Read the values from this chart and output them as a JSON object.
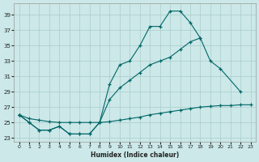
{
  "background_color": "#cce8e8",
  "grid_color": "#aacccc",
  "line_color": "#006666",
  "xlabel": "Humidex (Indice chaleur)",
  "xlim": [
    -0.5,
    23.5
  ],
  "ylim": [
    22.5,
    40.5
  ],
  "yticks": [
    23,
    25,
    27,
    29,
    31,
    33,
    35,
    37,
    39
  ],
  "xticks": [
    0,
    1,
    2,
    3,
    4,
    5,
    6,
    7,
    8,
    9,
    10,
    11,
    12,
    13,
    14,
    15,
    16,
    17,
    18,
    19,
    20,
    21,
    22,
    23
  ],
  "line1_x": [
    0,
    1,
    2,
    3,
    4,
    5,
    6,
    7,
    8,
    9,
    10,
    11,
    12,
    13,
    14,
    15,
    16,
    17,
    18
  ],
  "line1_y": [
    26.0,
    25.0,
    24.0,
    24.0,
    24.5,
    23.5,
    23.5,
    23.5,
    25.0,
    30.0,
    32.5,
    33.0,
    35.0,
    37.5,
    37.5,
    39.5,
    39.5,
    38.0,
    36.0
  ],
  "line2_x": [
    0,
    1,
    2,
    3,
    4,
    5,
    6,
    7,
    8,
    9,
    10,
    11,
    12,
    13,
    14,
    15,
    16,
    17,
    18,
    19,
    20,
    22
  ],
  "line2_y": [
    26.0,
    25.0,
    24.0,
    24.0,
    24.5,
    23.5,
    23.5,
    23.5,
    25.0,
    28.0,
    29.5,
    30.5,
    31.5,
    32.5,
    33.0,
    33.5,
    34.5,
    35.5,
    36.0,
    33.0,
    32.0,
    29.0
  ],
  "line3_x": [
    0,
    1,
    2,
    3,
    4,
    5,
    6,
    7,
    8,
    9,
    10,
    11,
    12,
    13,
    14,
    15,
    16,
    17,
    18,
    19,
    20,
    21,
    22,
    23
  ],
  "line3_y": [
    26.0,
    25.5,
    25.3,
    25.1,
    25.0,
    25.0,
    25.0,
    25.0,
    25.0,
    25.1,
    25.3,
    25.5,
    25.7,
    26.0,
    26.2,
    26.4,
    26.6,
    26.8,
    27.0,
    27.1,
    27.2,
    27.2,
    27.3,
    27.3
  ]
}
